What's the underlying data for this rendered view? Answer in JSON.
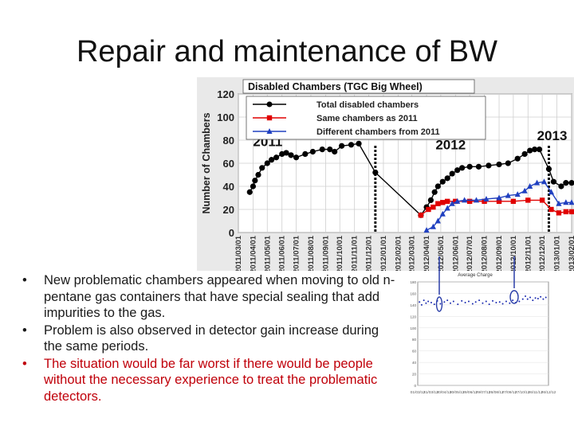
{
  "slide": {
    "title": "Repair and maintenance of BW",
    "bullets": [
      {
        "text": "New problematic chambers appeared when moving to old n-pentane gas containers that have special sealing that add impurities to the gas.",
        "color": "#1a1a1a"
      },
      {
        "text": "Problem is also observed in detector gain increase during the same periods.",
        "color": "#1a1a1a"
      },
      {
        "text": "The situation would be far worst if there would be people without the necessary experience to treat the problematic detectors.",
        "color": "#c0000a"
      }
    ],
    "bullet_symbol": "•"
  },
  "chart_data": [
    {
      "type": "line",
      "title": "Disabled Chambers (TGC Big Wheel)",
      "ylabel": "Number of Chambers",
      "ylim": [
        0,
        120
      ],
      "yticks": [
        0,
        20,
        40,
        60,
        80,
        100,
        120
      ],
      "xlim": [
        "2011/03/01",
        "2013/02/01"
      ],
      "x_tick_labels": [
        "2011/03/01",
        "2011/04/01",
        "2011/05/01",
        "2011/06/01",
        "2011/07/01",
        "2011/08/01",
        "2011/09/01",
        "2011/10/01",
        "2011/11/01",
        "2011/12/01",
        "2012/01/01",
        "2012/02/01",
        "2012/03/01",
        "2012/04/01",
        "2012/05/01",
        "2012/06/01",
        "2012/07/01",
        "2012/08/01",
        "2012/09/01",
        "2012/10/01",
        "2012/11/01",
        "2012/12/01",
        "2013/01/01",
        "2013/02/01"
      ],
      "annotations": [
        "2011",
        "2012",
        "2013"
      ],
      "year_boundaries": [
        "2011/12/15",
        "2012/12/15"
      ],
      "legend_position": "top",
      "series": [
        {
          "name": "Total disabled chambers",
          "color": "#000000",
          "marker": "circle",
          "points": [
            [
              "2011/03/25",
              35
            ],
            [
              "2011/04/01",
              40
            ],
            [
              "2011/04/05",
              45
            ],
            [
              "2011/04/12",
              50
            ],
            [
              "2011/04/20",
              56
            ],
            [
              "2011/05/01",
              60
            ],
            [
              "2011/05/10",
              63
            ],
            [
              "2011/05/20",
              65
            ],
            [
              "2011/06/01",
              68
            ],
            [
              "2011/06/10",
              69
            ],
            [
              "2011/06/20",
              67
            ],
            [
              "2011/07/01",
              65
            ],
            [
              "2011/07/20",
              68
            ],
            [
              "2011/08/05",
              70
            ],
            [
              "2011/08/25",
              72
            ],
            [
              "2011/09/10",
              72
            ],
            [
              "2011/09/20",
              70
            ],
            [
              "2011/10/05",
              75
            ],
            [
              "2011/10/25",
              76
            ],
            [
              "2011/11/10",
              77
            ],
            [
              "2011/12/15",
              52
            ],
            [
              "2012/03/20",
              15
            ],
            [
              "2012/04/01",
              22
            ],
            [
              "2012/04/10",
              28
            ],
            [
              "2012/04/18",
              35
            ],
            [
              "2012/04/25",
              40
            ],
            [
              "2012/05/05",
              44
            ],
            [
              "2012/05/15",
              47
            ],
            [
              "2012/05/25",
              51
            ],
            [
              "2012/06/05",
              54
            ],
            [
              "2012/06/15",
              56
            ],
            [
              "2012/07/01",
              57
            ],
            [
              "2012/07/20",
              57
            ],
            [
              "2012/08/10",
              58
            ],
            [
              "2012/09/01",
              59
            ],
            [
              "2012/09/20",
              60
            ],
            [
              "2012/10/10",
              64
            ],
            [
              "2012/10/25",
              68
            ],
            [
              "2012/11/05",
              71
            ],
            [
              "2012/11/15",
              72
            ],
            [
              "2012/11/25",
              72
            ],
            [
              "2012/12/15",
              55
            ],
            [
              "2012/12/25",
              44
            ],
            [
              "2013/01/10",
              40
            ],
            [
              "2013/01/20",
              43
            ],
            [
              "2013/02/01",
              43
            ]
          ]
        },
        {
          "name": "Same chambers as 2011",
          "color": "#e00000",
          "marker": "square",
          "points": [
            [
              "2012/03/20",
              15
            ],
            [
              "2012/04/05",
              20
            ],
            [
              "2012/04/15",
              22
            ],
            [
              "2012/04/25",
              25
            ],
            [
              "2012/05/05",
              26
            ],
            [
              "2012/05/15",
              27
            ],
            [
              "2012/06/01",
              27
            ],
            [
              "2012/07/01",
              27
            ],
            [
              "2012/08/01",
              27
            ],
            [
              "2012/09/01",
              27
            ],
            [
              "2012/10/01",
              27
            ],
            [
              "2012/11/01",
              28
            ],
            [
              "2012/12/01",
              28
            ],
            [
              "2012/12/20",
              20
            ],
            [
              "2013/01/05",
              17
            ],
            [
              "2013/01/20",
              18
            ],
            [
              "2013/02/01",
              18
            ]
          ]
        },
        {
          "name": "Different chambers from 2011",
          "color": "#2040c0",
          "marker": "triangle",
          "points": [
            [
              "2012/04/01",
              2
            ],
            [
              "2012/04/15",
              5
            ],
            [
              "2012/04/25",
              10
            ],
            [
              "2012/05/05",
              16
            ],
            [
              "2012/05/15",
              21
            ],
            [
              "2012/05/25",
              25
            ],
            [
              "2012/06/05",
              27
            ],
            [
              "2012/06/20",
              28
            ],
            [
              "2012/07/15",
              28
            ],
            [
              "2012/08/05",
              29
            ],
            [
              "2012/09/01",
              30
            ],
            [
              "2012/09/20",
              32
            ],
            [
              "2012/10/10",
              33
            ],
            [
              "2012/10/25",
              36
            ],
            [
              "2012/11/05",
              40
            ],
            [
              "2012/11/20",
              43
            ],
            [
              "2012/12/05",
              44
            ],
            [
              "2012/12/20",
              35
            ],
            [
              "2013/01/05",
              25
            ],
            [
              "2013/01/20",
              26
            ],
            [
              "2013/02/01",
              26
            ]
          ]
        }
      ]
    },
    {
      "type": "scatter",
      "title": "Average Charge",
      "ylim": [
        0,
        180
      ],
      "yticks": [
        0,
        20,
        40,
        60,
        80,
        100,
        120,
        140,
        160,
        180
      ],
      "x_tick_labels": [
        "01/03/12",
        "31/03/12",
        "30/04/12",
        "30/05/12",
        "29/06/12",
        "29/07/12",
        "28/08/12",
        "27/09/12",
        "27/10/12",
        "26/11/12",
        "26/12/12"
      ],
      "series": [
        {
          "name": "",
          "color": "#1a2ab0",
          "marker": "dot",
          "points": [
            [
              "2012/03/05",
              145
            ],
            [
              "2012/03/10",
              140
            ],
            [
              "2012/03/15",
              148
            ],
            [
              "2012/03/20",
              143
            ],
            [
              "2012/03/25",
              146
            ],
            [
              "2012/04/01",
              144
            ],
            [
              "2012/04/08",
              141
            ],
            [
              "2012/04/15",
              147
            ],
            [
              "2012/04/22",
              142
            ],
            [
              "2012/05/01",
              145
            ],
            [
              "2012/05/08",
              148
            ],
            [
              "2012/05/15",
              143
            ],
            [
              "2012/05/22",
              146
            ],
            [
              "2012/06/01",
              141
            ],
            [
              "2012/06/10",
              147
            ],
            [
              "2012/06/18",
              144
            ],
            [
              "2012/06/26",
              146
            ],
            [
              "2012/07/05",
              142
            ],
            [
              "2012/07/12",
              145
            ],
            [
              "2012/07/20",
              148
            ],
            [
              "2012/07/28",
              143
            ],
            [
              "2012/08/05",
              146
            ],
            [
              "2012/08/12",
              141
            ],
            [
              "2012/08/20",
              147
            ],
            [
              "2012/08/28",
              144
            ],
            [
              "2012/09/05",
              145
            ],
            [
              "2012/09/12",
              142
            ],
            [
              "2012/09/20",
              146
            ],
            [
              "2012/09/28",
              143
            ],
            [
              "2012/10/05",
              148
            ],
            [
              "2012/10/12",
              144
            ],
            [
              "2012/10/20",
              146
            ],
            [
              "2012/10/28",
              150
            ],
            [
              "2012/11/03",
              155
            ],
            [
              "2012/11/08",
              150
            ],
            [
              "2012/11/14",
              153
            ],
            [
              "2012/11/20",
              148
            ],
            [
              "2012/11/26",
              152
            ],
            [
              "2012/12/02",
              151
            ],
            [
              "2012/12/08",
              154
            ],
            [
              "2012/12/14",
              150
            ],
            [
              "2012/12/20",
              153
            ]
          ]
        }
      ]
    }
  ]
}
